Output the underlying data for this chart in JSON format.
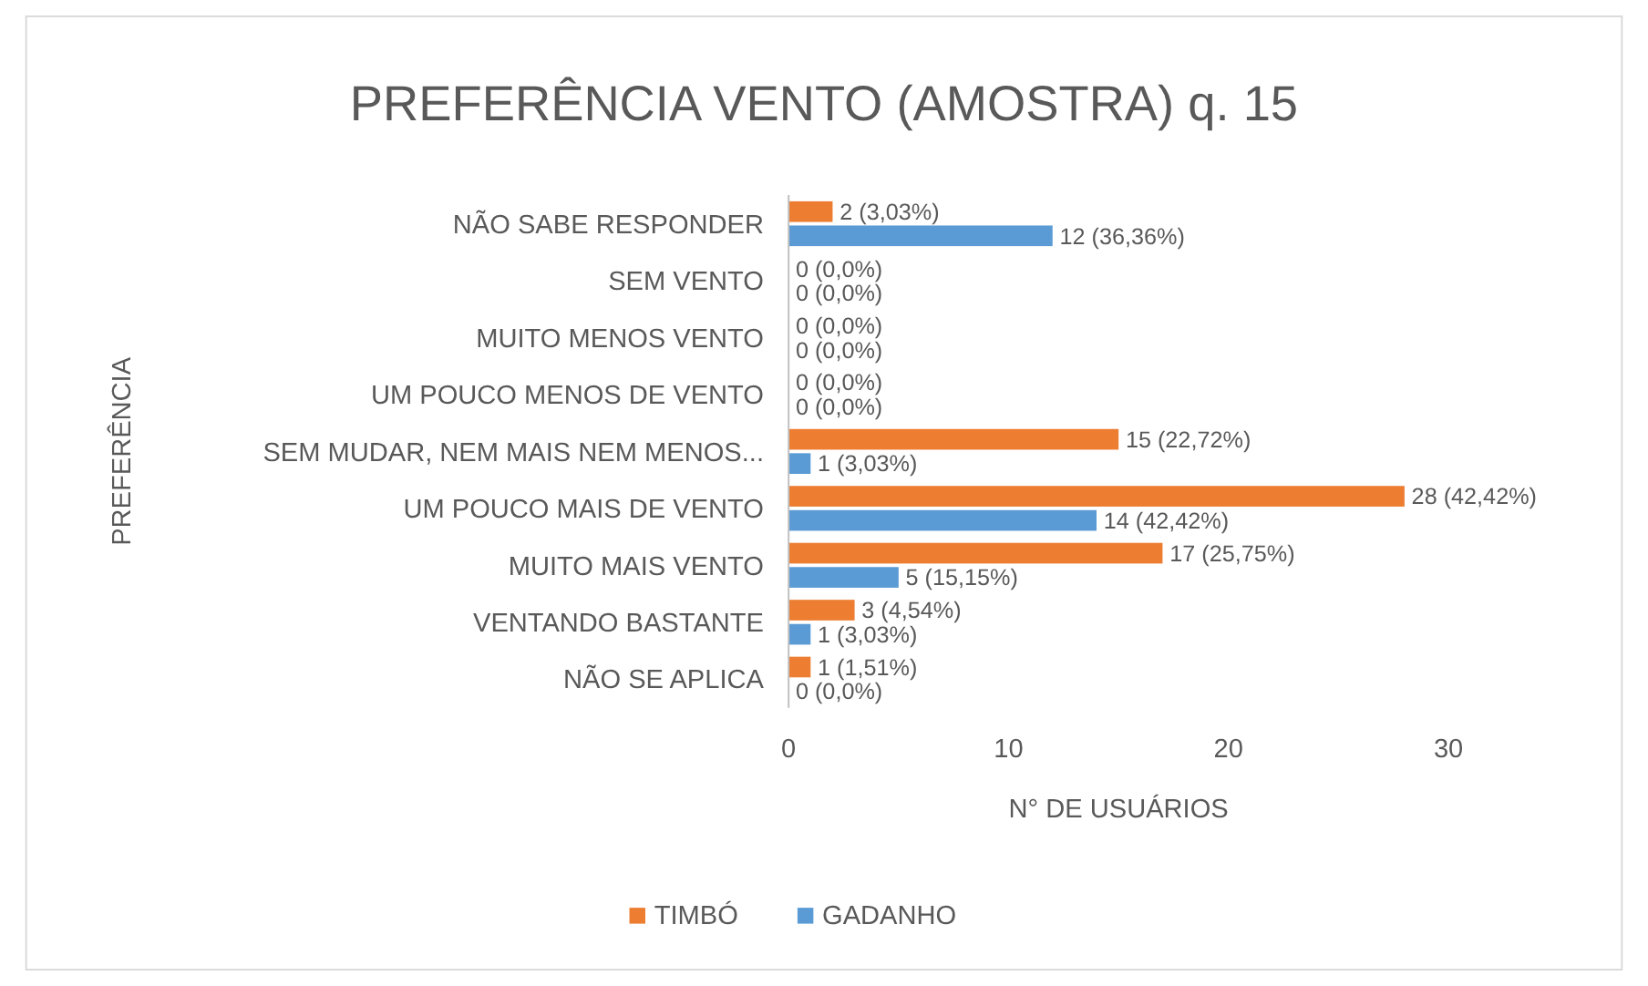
{
  "chart_data": {
    "type": "bar",
    "orientation": "horizontal",
    "title": "PREFERÊNCIA VENTO (AMOSTRA) q. 15",
    "xlabel": "N° DE USUÁRIOS",
    "ylabel": "PREFERÊNCIA",
    "categories": [
      "NÃO SABE RESPONDER",
      "SEM VENTO",
      "MUITO MENOS VENTO",
      "UM POUCO MENOS DE VENTO",
      "SEM MUDAR, NEM MAIS NEM MENOS...",
      "UM POUCO MAIS DE VENTO",
      "MUITO MAIS VENTO",
      "VENTANDO BASTANTE",
      "NÃO SE APLICA"
    ],
    "series": [
      {
        "name": "TIMBÓ",
        "color": "#ed7d31",
        "values": [
          2,
          0,
          0,
          0,
          15,
          28,
          17,
          3,
          1
        ],
        "value_labels": [
          "2 (3,03%)",
          "0 (0,0%)",
          "0 (0,0%)",
          "0 (0,0%)",
          "15 (22,72%)",
          "28 (42,42%)",
          "17 (25,75%)",
          "3 (4,54%)",
          "1 (1,51%)"
        ]
      },
      {
        "name": "GADANHO",
        "color": "#5b9bd5",
        "values": [
          12,
          0,
          0,
          0,
          1,
          14,
          5,
          1,
          0
        ],
        "value_labels": [
          "12 (36,36%)",
          "0 (0,0%)",
          "0 (0,0%)",
          "0 (0,0%)",
          "1 (3,03%)",
          "14 (42,42%)",
          "5 (15,15%)",
          "1 (3,03%)",
          "0 (0,0%)"
        ]
      }
    ],
    "xlim": [
      0,
      30
    ],
    "xticks": [
      0,
      10,
      20,
      30
    ],
    "grid": false,
    "legend": "bottom"
  }
}
